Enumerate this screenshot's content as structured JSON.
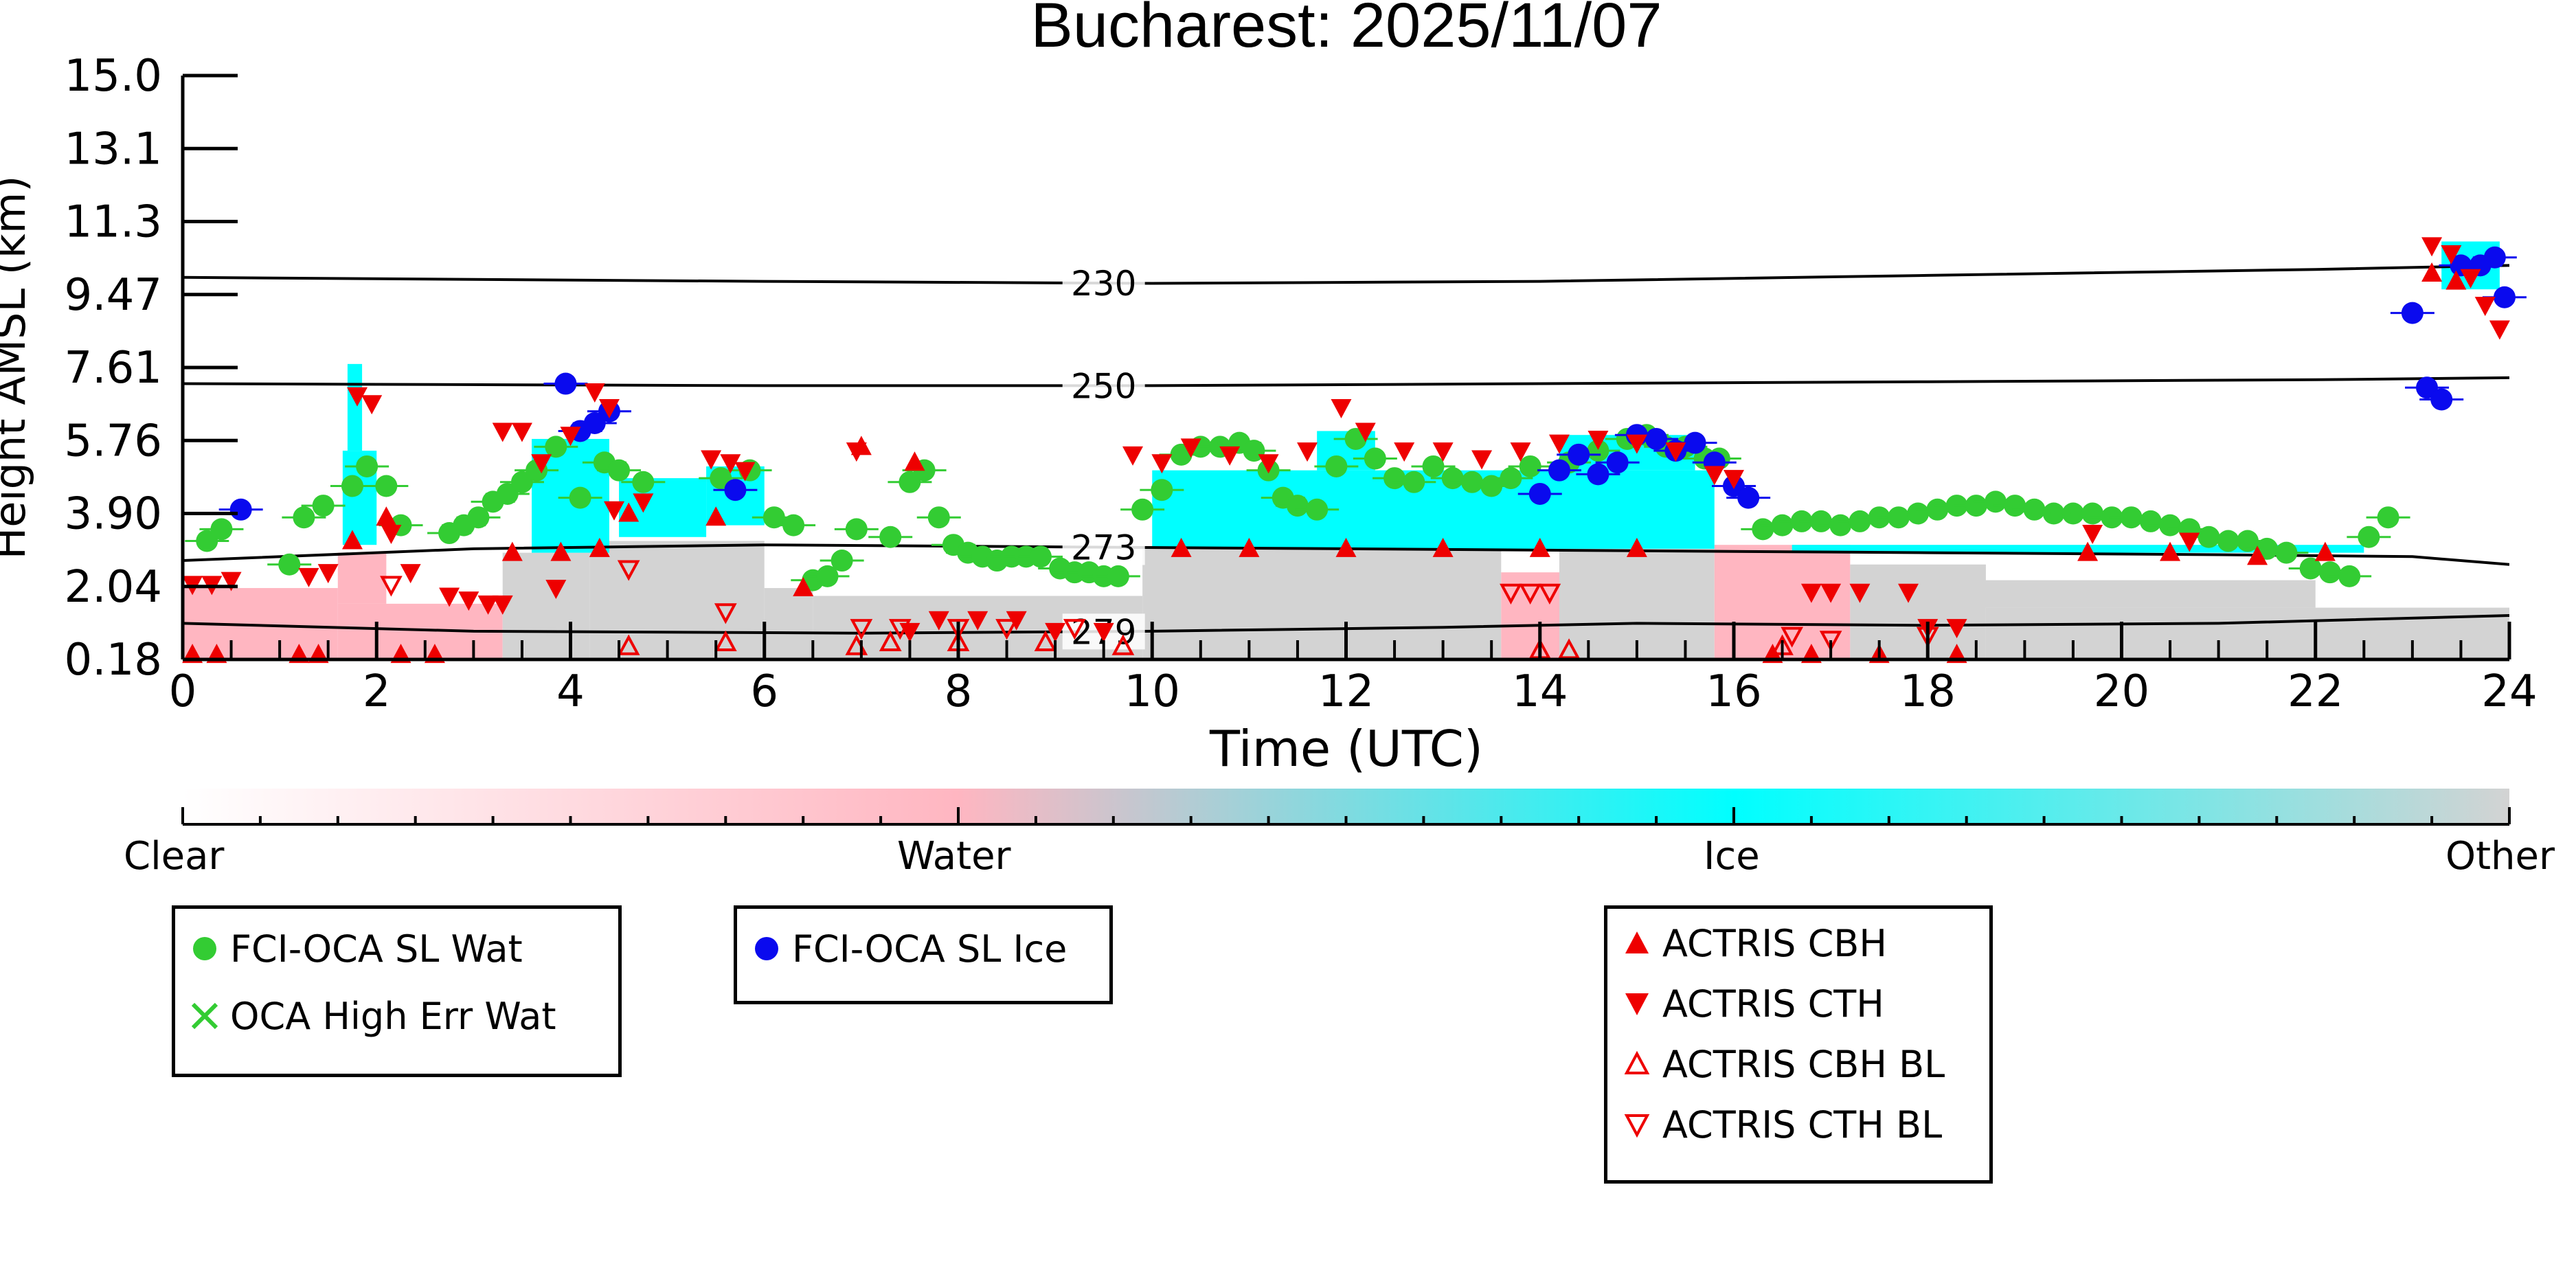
{
  "chart_data": {
    "type": "scatter",
    "title": "Bucharest: 2025/11/07",
    "xlabel": "Time (UTC)",
    "ylabel": "Height AMSL (km)",
    "xlim": [
      0,
      24
    ],
    "ylim": [
      0.18,
      15.0
    ],
    "x_ticks": [
      "0",
      "2",
      "4",
      "6",
      "8",
      "10",
      "12",
      "14",
      "16",
      "18",
      "20",
      "22",
      "24"
    ],
    "y_ticks": [
      "0.18",
      "2.04",
      "3.90",
      "5.76",
      "7.61",
      "9.47",
      "11.3",
      "13.1",
      "15.0"
    ],
    "y_tick_values": [
      0.18,
      2.04,
      3.9,
      5.76,
      7.61,
      9.47,
      11.3,
      13.1,
      15.0
    ],
    "colorbar": {
      "labels": [
        "Clear",
        "Water",
        "Ice",
        "Other"
      ],
      "colors": [
        "#ffffff",
        "#ffb6c1",
        "#00ffff",
        "#d3d3d3"
      ]
    },
    "isotherms": [
      {
        "label": "230",
        "points": [
          [
            0,
            9.9
          ],
          [
            6,
            9.8
          ],
          [
            10,
            9.75
          ],
          [
            14,
            9.8
          ],
          [
            18,
            9.95
          ],
          [
            22,
            10.1
          ],
          [
            24,
            10.2
          ]
        ]
      },
      {
        "label": "250",
        "points": [
          [
            0,
            7.2
          ],
          [
            6,
            7.15
          ],
          [
            10,
            7.15
          ],
          [
            14,
            7.2
          ],
          [
            18,
            7.25
          ],
          [
            22,
            7.3
          ],
          [
            24,
            7.35
          ]
        ]
      },
      {
        "label": "273",
        "points": [
          [
            0,
            2.7
          ],
          [
            3,
            3.0
          ],
          [
            6,
            3.1
          ],
          [
            9,
            3.05
          ],
          [
            12,
            3.0
          ],
          [
            15,
            2.95
          ],
          [
            18,
            2.9
          ],
          [
            21,
            2.85
          ],
          [
            23,
            2.8
          ],
          [
            24,
            2.6
          ]
        ]
      },
      {
        "label": "279",
        "points": [
          [
            0,
            1.1
          ],
          [
            3,
            0.9
          ],
          [
            7,
            0.85
          ],
          [
            10,
            0.9
          ],
          [
            13,
            1.0
          ],
          [
            15,
            1.1
          ],
          [
            18,
            1.05
          ],
          [
            21,
            1.1
          ],
          [
            24,
            1.3
          ]
        ]
      }
    ],
    "series": [
      {
        "name": "FCI-OCA SL Wat",
        "color": "#33cc33",
        "points": [
          [
            0.25,
            3.2
          ],
          [
            0.4,
            3.5
          ],
          [
            1.1,
            2.6
          ],
          [
            1.25,
            3.8
          ],
          [
            1.45,
            4.1
          ],
          [
            1.75,
            4.6
          ],
          [
            1.9,
            5.1
          ],
          [
            2.1,
            4.6
          ],
          [
            2.25,
            3.6
          ],
          [
            2.75,
            3.4
          ],
          [
            2.9,
            3.6
          ],
          [
            3.05,
            3.8
          ],
          [
            3.2,
            4.2
          ],
          [
            3.35,
            4.4
          ],
          [
            3.5,
            4.7
          ],
          [
            3.65,
            5.0
          ],
          [
            3.85,
            5.6
          ],
          [
            4.1,
            4.3
          ],
          [
            4.35,
            5.2
          ],
          [
            4.5,
            5.0
          ],
          [
            4.75,
            4.7
          ],
          [
            5.55,
            4.8
          ],
          [
            5.85,
            5.0
          ],
          [
            6.1,
            3.8
          ],
          [
            6.3,
            3.6
          ],
          [
            6.5,
            2.2
          ],
          [
            6.65,
            2.3
          ],
          [
            6.8,
            2.7
          ],
          [
            6.95,
            3.5
          ],
          [
            7.3,
            3.3
          ],
          [
            7.5,
            4.7
          ],
          [
            7.65,
            5.0
          ],
          [
            7.8,
            3.8
          ],
          [
            7.95,
            3.1
          ],
          [
            8.1,
            2.9
          ],
          [
            8.25,
            2.8
          ],
          [
            8.4,
            2.7
          ],
          [
            8.55,
            2.8
          ],
          [
            8.7,
            2.8
          ],
          [
            8.85,
            2.8
          ],
          [
            9.05,
            2.5
          ],
          [
            9.2,
            2.4
          ],
          [
            9.35,
            2.4
          ],
          [
            9.5,
            2.3
          ],
          [
            9.65,
            2.3
          ],
          [
            9.9,
            4.0
          ],
          [
            10.1,
            4.5
          ],
          [
            10.3,
            5.4
          ],
          [
            10.5,
            5.6
          ],
          [
            10.7,
            5.6
          ],
          [
            10.9,
            5.7
          ],
          [
            11.05,
            5.5
          ],
          [
            11.2,
            5.0
          ],
          [
            11.35,
            4.3
          ],
          [
            11.5,
            4.1
          ],
          [
            11.7,
            4.0
          ],
          [
            11.9,
            5.1
          ],
          [
            12.1,
            5.8
          ],
          [
            12.3,
            5.3
          ],
          [
            12.5,
            4.8
          ],
          [
            12.7,
            4.7
          ],
          [
            12.9,
            5.1
          ],
          [
            13.1,
            4.8
          ],
          [
            13.3,
            4.7
          ],
          [
            13.5,
            4.6
          ],
          [
            13.7,
            4.8
          ],
          [
            13.9,
            5.1
          ],
          [
            14.3,
            5.2
          ],
          [
            14.6,
            5.5
          ],
          [
            14.9,
            5.8
          ],
          [
            15.1,
            5.9
          ],
          [
            15.3,
            5.6
          ],
          [
            15.5,
            5.6
          ],
          [
            15.7,
            5.3
          ],
          [
            15.85,
            5.3
          ],
          [
            16.3,
            3.5
          ],
          [
            16.5,
            3.6
          ],
          [
            16.7,
            3.7
          ],
          [
            16.9,
            3.7
          ],
          [
            17.1,
            3.6
          ],
          [
            17.3,
            3.7
          ],
          [
            17.5,
            3.8
          ],
          [
            17.7,
            3.8
          ],
          [
            17.9,
            3.9
          ],
          [
            18.1,
            4.0
          ],
          [
            18.3,
            4.1
          ],
          [
            18.5,
            4.1
          ],
          [
            18.7,
            4.2
          ],
          [
            18.9,
            4.1
          ],
          [
            19.1,
            4.0
          ],
          [
            19.3,
            3.9
          ],
          [
            19.5,
            3.9
          ],
          [
            19.7,
            3.9
          ],
          [
            19.9,
            3.8
          ],
          [
            20.1,
            3.8
          ],
          [
            20.3,
            3.7
          ],
          [
            20.5,
            3.6
          ],
          [
            20.7,
            3.5
          ],
          [
            20.9,
            3.3
          ],
          [
            21.1,
            3.2
          ],
          [
            21.3,
            3.2
          ],
          [
            21.5,
            3.0
          ],
          [
            21.7,
            2.9
          ],
          [
            21.95,
            2.5
          ],
          [
            22.15,
            2.4
          ],
          [
            22.35,
            2.3
          ],
          [
            22.55,
            3.3
          ],
          [
            22.75,
            3.8
          ]
        ]
      },
      {
        "name": "FCI-OCA SL Ice",
        "color": "#0a0aee",
        "points": [
          [
            0.6,
            4.0
          ],
          [
            3.95,
            7.2
          ],
          [
            4.1,
            6.0
          ],
          [
            4.25,
            6.2
          ],
          [
            4.4,
            6.5
          ],
          [
            5.7,
            4.5
          ],
          [
            14.0,
            4.4
          ],
          [
            14.2,
            5.0
          ],
          [
            14.4,
            5.4
          ],
          [
            14.6,
            4.9
          ],
          [
            14.8,
            5.2
          ],
          [
            15.0,
            5.9
          ],
          [
            15.2,
            5.8
          ],
          [
            15.4,
            5.5
          ],
          [
            15.6,
            5.7
          ],
          [
            15.8,
            5.2
          ],
          [
            16.0,
            4.6
          ],
          [
            16.15,
            4.3
          ],
          [
            23.0,
            9.0
          ],
          [
            23.15,
            7.1
          ],
          [
            23.3,
            6.8
          ],
          [
            23.5,
            10.2
          ],
          [
            23.7,
            10.2
          ],
          [
            23.85,
            10.4
          ],
          [
            23.95,
            9.4
          ]
        ]
      },
      {
        "name": "ACTRIS CBH",
        "color": "#ee0000",
        "points": [
          [
            0.1,
            0.3
          ],
          [
            0.35,
            0.3
          ],
          [
            1.2,
            0.3
          ],
          [
            1.4,
            0.3
          ],
          [
            1.75,
            3.2
          ],
          [
            2.1,
            3.8
          ],
          [
            2.25,
            0.3
          ],
          [
            2.6,
            0.3
          ],
          [
            3.4,
            2.9
          ],
          [
            3.9,
            2.9
          ],
          [
            4.3,
            3.0
          ],
          [
            4.6,
            3.9
          ],
          [
            5.5,
            3.8
          ],
          [
            6.4,
            2.0
          ],
          [
            7.0,
            5.6
          ],
          [
            7.55,
            5.2
          ],
          [
            10.3,
            3.0
          ],
          [
            11.0,
            3.0
          ],
          [
            12.0,
            3.0
          ],
          [
            13.0,
            3.0
          ],
          [
            14.0,
            3.0
          ],
          [
            15.0,
            3.0
          ],
          [
            16.4,
            0.3
          ],
          [
            16.8,
            0.3
          ],
          [
            17.5,
            0.3
          ],
          [
            18.3,
            0.3
          ],
          [
            19.65,
            2.9
          ],
          [
            20.5,
            2.9
          ],
          [
            21.4,
            2.8
          ],
          [
            22.1,
            2.9
          ],
          [
            23.2,
            10.0
          ],
          [
            23.45,
            9.8
          ]
        ]
      },
      {
        "name": "ACTRIS CTH",
        "color": "#ee0000",
        "points": [
          [
            0.1,
            2.1
          ],
          [
            0.3,
            2.1
          ],
          [
            0.5,
            2.2
          ],
          [
            1.3,
            2.3
          ],
          [
            1.5,
            2.4
          ],
          [
            1.8,
            6.9
          ],
          [
            1.95,
            6.7
          ],
          [
            2.15,
            3.4
          ],
          [
            2.35,
            2.4
          ],
          [
            2.75,
            1.8
          ],
          [
            2.95,
            1.7
          ],
          [
            3.15,
            1.6
          ],
          [
            3.3,
            1.6
          ],
          [
            3.3,
            6.0
          ],
          [
            3.5,
            6.0
          ],
          [
            3.7,
            5.2
          ],
          [
            3.85,
            2.0
          ],
          [
            4.0,
            5.9
          ],
          [
            4.25,
            7.0
          ],
          [
            4.4,
            6.6
          ],
          [
            4.45,
            4.0
          ],
          [
            4.75,
            4.2
          ],
          [
            5.45,
            5.3
          ],
          [
            5.65,
            5.2
          ],
          [
            5.8,
            5.0
          ],
          [
            6.95,
            5.5
          ],
          [
            7.5,
            0.9
          ],
          [
            7.8,
            1.2
          ],
          [
            8.2,
            1.2
          ],
          [
            8.6,
            1.2
          ],
          [
            9.0,
            0.9
          ],
          [
            9.5,
            0.9
          ],
          [
            9.8,
            5.4
          ],
          [
            10.1,
            5.2
          ],
          [
            10.4,
            5.6
          ],
          [
            10.8,
            5.4
          ],
          [
            11.2,
            5.2
          ],
          [
            11.6,
            5.5
          ],
          [
            11.95,
            6.6
          ],
          [
            12.2,
            6.0
          ],
          [
            12.6,
            5.5
          ],
          [
            13.0,
            5.5
          ],
          [
            13.4,
            5.3
          ],
          [
            13.8,
            5.5
          ],
          [
            14.2,
            5.7
          ],
          [
            14.6,
            5.8
          ],
          [
            15.0,
            5.7
          ],
          [
            15.4,
            5.5
          ],
          [
            15.8,
            4.9
          ],
          [
            16.0,
            4.8
          ],
          [
            16.8,
            1.9
          ],
          [
            17.0,
            1.9
          ],
          [
            17.3,
            1.9
          ],
          [
            17.8,
            1.9
          ],
          [
            18.0,
            1.0
          ],
          [
            18.3,
            1.0
          ],
          [
            19.7,
            3.4
          ],
          [
            20.7,
            3.2
          ],
          [
            23.2,
            10.7
          ],
          [
            23.4,
            10.5
          ],
          [
            23.6,
            9.9
          ],
          [
            23.75,
            9.2
          ],
          [
            23.9,
            8.6
          ]
        ]
      },
      {
        "name": "ACTRIS CBH BL",
        "color": "#ee0000",
        "points": [
          [
            4.6,
            0.5
          ],
          [
            5.6,
            0.6
          ],
          [
            6.95,
            0.5
          ],
          [
            7.3,
            0.6
          ],
          [
            8.0,
            0.6
          ],
          [
            8.9,
            0.6
          ],
          [
            9.7,
            0.5
          ],
          [
            14.0,
            0.4
          ],
          [
            14.3,
            0.4
          ],
          [
            16.5,
            0.5
          ]
        ]
      },
      {
        "name": "ACTRIS CTH BL",
        "color": "#ee0000",
        "points": [
          [
            2.15,
            2.1
          ],
          [
            4.6,
            2.5
          ],
          [
            5.6,
            1.4
          ],
          [
            7.0,
            1.0
          ],
          [
            7.4,
            1.0
          ],
          [
            8.0,
            1.0
          ],
          [
            8.5,
            1.0
          ],
          [
            9.2,
            1.0
          ],
          [
            13.7,
            1.9
          ],
          [
            13.9,
            1.9
          ],
          [
            14.1,
            1.9
          ],
          [
            16.6,
            0.8
          ],
          [
            17.0,
            0.7
          ],
          [
            18.0,
            0.8
          ]
        ]
      }
    ],
    "legends": [
      {
        "entries": [
          {
            "label": "FCI-OCA SL Wat",
            "marker": "circle",
            "color": "#33cc33"
          },
          {
            "label": "OCA High Err Wat",
            "marker": "x",
            "color": "#33cc33"
          }
        ]
      },
      {
        "entries": [
          {
            "label": "FCI-OCA SL Ice",
            "marker": "circle",
            "color": "#0a0aee"
          }
        ]
      },
      {
        "entries": [
          {
            "label": "ACTRIS CBH",
            "marker": "triangle-up",
            "color": "#ee0000"
          },
          {
            "label": "ACTRIS CTH",
            "marker": "triangle-down",
            "color": "#ee0000"
          },
          {
            "label": "ACTRIS CBH BL",
            "marker": "triangle-up-open",
            "color": "#ee0000"
          },
          {
            "label": "ACTRIS CTH BL",
            "marker": "triangle-down-open",
            "color": "#ee0000"
          }
        ]
      }
    ]
  }
}
